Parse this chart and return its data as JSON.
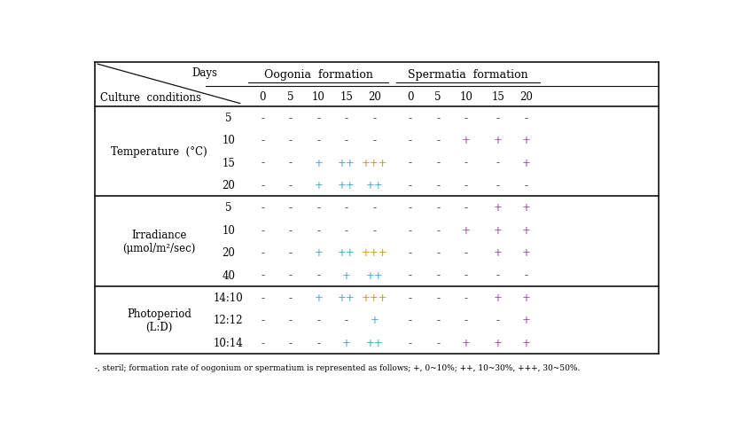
{
  "footnote": "-, steril; formation rate of oogonium or spermatium is represented as follows; +, 0~10%; ++, 10~30%, +++, 30~50%.",
  "sections": [
    {
      "label": "Temperature  (°C)",
      "rows": [
        {
          "condition": "5",
          "oogo": [
            "-",
            "-",
            "-",
            "-",
            "-"
          ],
          "sper": [
            "-",
            "-",
            "-",
            "-",
            "-"
          ]
        },
        {
          "condition": "10",
          "oogo": [
            "-",
            "-",
            "-",
            "-",
            "-"
          ],
          "sper": [
            "-",
            "-",
            "+",
            "+",
            "+"
          ]
        },
        {
          "condition": "15",
          "oogo": [
            "-",
            "-",
            "+",
            "++",
            "+++"
          ],
          "sper": [
            "-",
            "-",
            "-",
            "-",
            "+"
          ]
        },
        {
          "condition": "20",
          "oogo": [
            "-",
            "-",
            "+",
            "++",
            "++"
          ],
          "sper": [
            "-",
            "-",
            "-",
            "-",
            "-"
          ]
        }
      ]
    },
    {
      "label": "Irradiance\n(μmol/m²/sec)",
      "rows": [
        {
          "condition": "5",
          "oogo": [
            "-",
            "-",
            "-",
            "-",
            "-"
          ],
          "sper": [
            "-",
            "-",
            "-",
            "+",
            "+"
          ]
        },
        {
          "condition": "10",
          "oogo": [
            "-",
            "-",
            "-",
            "-",
            "-"
          ],
          "sper": [
            "-",
            "-",
            "+",
            "+",
            "+"
          ]
        },
        {
          "condition": "20",
          "oogo": [
            "-",
            "-",
            "+",
            "++",
            "+++"
          ],
          "sper": [
            "-",
            "-",
            "-",
            "+",
            "+"
          ]
        },
        {
          "condition": "40",
          "oogo": [
            "-",
            "-",
            "-",
            "+",
            "++"
          ],
          "sper": [
            "-",
            "-",
            "-",
            "-",
            "-"
          ]
        }
      ]
    },
    {
      "label": "Photoperiod\n(L:D)",
      "rows": [
        {
          "condition": "14:10",
          "oogo": [
            "-",
            "-",
            "+",
            "++",
            "+++"
          ],
          "sper": [
            "-",
            "-",
            "-",
            "+",
            "+"
          ]
        },
        {
          "condition": "12:12",
          "oogo": [
            "-",
            "-",
            "-",
            "-",
            "+"
          ],
          "sper": [
            "-",
            "-",
            "-",
            "-",
            "+"
          ]
        },
        {
          "condition": "10:14",
          "oogo": [
            "-",
            "-",
            "-",
            "+",
            "++"
          ],
          "sper": [
            "-",
            "-",
            "+",
            "+",
            "+"
          ]
        }
      ]
    }
  ],
  "minus_color": "#222222",
  "oogo_plus_color": "#3399cc",
  "oogo_plus3_color": "#cc8800",
  "sper_plus_color": "#993399",
  "bg_color": "#ffffff",
  "line_color": "#111111"
}
